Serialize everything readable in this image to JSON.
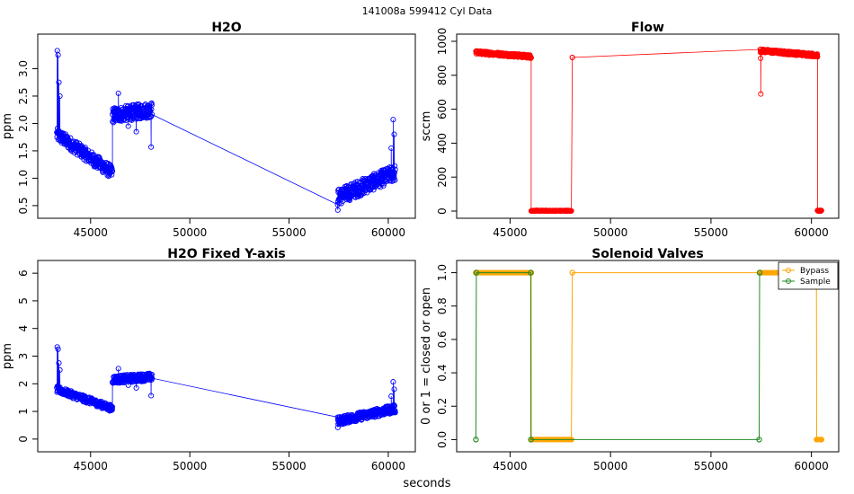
{
  "header": {
    "title": "141008a   599412   Cyl Data"
  },
  "shared_xlabel": "seconds",
  "chart_data": [
    {
      "id": "h2o",
      "type": "scatter",
      "title": "H2O",
      "xlabel": "",
      "ylabel": "ppm",
      "xlim": [
        42700,
        61000
      ],
      "ylim": [
        0.4,
        3.5
      ],
      "xticks": [
        45000,
        50000,
        55000,
        60000
      ],
      "yticks": [
        0.5,
        1.0,
        1.5,
        2.0,
        2.5,
        3.0
      ],
      "ytick_labels": [
        "0.5",
        "1.0",
        "1.5",
        "2.0",
        "2.5",
        "3.0"
      ],
      "color": "#0000ff",
      "connected": true,
      "segments": [
        {
          "x_start": 43300,
          "x_end": 46100,
          "y_start": 1.8,
          "y_end": 1.1,
          "spread": 0.12,
          "spikes": [
            [
              43320,
              3.33
            ],
            [
              43360,
              3.25
            ],
            [
              43400,
              2.75
            ],
            [
              43450,
              2.5
            ]
          ]
        },
        {
          "x_start": 46100,
          "x_end": 48100,
          "y_start": 2.15,
          "y_end": 2.25,
          "spread": 0.14,
          "spikes": [
            [
              46400,
              2.55
            ],
            [
              46900,
              1.95
            ],
            [
              47300,
              1.85
            ],
            [
              48050,
              1.57
            ]
          ]
        },
        {
          "x_start": 57450,
          "x_end": 60350,
          "y_start": 0.65,
          "y_end": 1.1,
          "spread": 0.15,
          "spikes": [
            [
              57460,
              0.42
            ],
            [
              60150,
              1.55
            ],
            [
              60250,
              2.07
            ],
            [
              60300,
              1.8
            ]
          ]
        }
      ]
    },
    {
      "id": "flow",
      "type": "scatter",
      "title": "Flow",
      "xlabel": "",
      "ylabel": "sccm",
      "xlim": [
        42700,
        61000
      ],
      "ylim": [
        0,
        1000
      ],
      "xticks": [
        45000,
        50000,
        55000,
        60000
      ],
      "yticks": [
        0,
        200,
        400,
        600,
        800,
        1000
      ],
      "ytick_labels": [
        "0",
        "200",
        "400",
        "600",
        "800",
        "1000"
      ],
      "color": "#ff0000",
      "connected": true,
      "segments": [
        {
          "x_start": 43300,
          "x_end": 46050,
          "y_start": 935,
          "y_end": 910,
          "spread": 10,
          "spikes": []
        },
        {
          "x_start": 46050,
          "x_end": 48050,
          "y_start": 2,
          "y_end": 2,
          "spread": 2,
          "spikes": []
        },
        {
          "x_start": 48100,
          "x_end": 48100,
          "y_start": 905,
          "y_end": 905,
          "spread": 0,
          "spikes": []
        },
        {
          "x_start": 57450,
          "x_end": 60300,
          "y_start": 945,
          "y_end": 918,
          "spread": 10,
          "spikes": [
            [
              57480,
              690
            ],
            [
              57470,
              900
            ]
          ]
        },
        {
          "x_start": 60300,
          "x_end": 60500,
          "y_start": 2,
          "y_end": 2,
          "spread": 2,
          "spikes": []
        }
      ]
    },
    {
      "id": "h2o-fixed",
      "type": "scatter",
      "title": "H2O Fixed Y-axis",
      "xlabel": "",
      "ylabel": "ppm",
      "xlim": [
        42700,
        61000
      ],
      "ylim": [
        -0.2,
        6.2
      ],
      "xticks": [
        45000,
        50000,
        55000,
        60000
      ],
      "yticks": [
        0,
        1,
        2,
        3,
        4,
        5,
        6
      ],
      "ytick_labels": [
        "0",
        "1",
        "2",
        "3",
        "4",
        "5",
        "6"
      ],
      "color": "#0000ff",
      "connected": true,
      "segments": [
        {
          "x_start": 43300,
          "x_end": 46100,
          "y_start": 1.8,
          "y_end": 1.1,
          "spread": 0.12,
          "spikes": [
            [
              43320,
              3.33
            ],
            [
              43360,
              3.25
            ],
            [
              43400,
              2.75
            ],
            [
              43450,
              2.5
            ]
          ]
        },
        {
          "x_start": 46100,
          "x_end": 48100,
          "y_start": 2.15,
          "y_end": 2.25,
          "spread": 0.14,
          "spikes": [
            [
              46400,
              2.55
            ],
            [
              46900,
              1.95
            ],
            [
              47300,
              1.85
            ],
            [
              48050,
              1.57
            ]
          ]
        },
        {
          "x_start": 57450,
          "x_end": 60350,
          "y_start": 0.65,
          "y_end": 1.1,
          "spread": 0.15,
          "spikes": [
            [
              57460,
              0.42
            ],
            [
              60150,
              1.55
            ],
            [
              60250,
              2.07
            ],
            [
              60300,
              1.8
            ]
          ]
        }
      ]
    },
    {
      "id": "valves",
      "type": "line",
      "title": "Solenoid Valves",
      "xlabel": "",
      "ylabel": "0 or 1 = closed or open",
      "xlim": [
        42700,
        61000
      ],
      "ylim": [
        -0.03,
        1.03
      ],
      "xticks": [
        45000,
        50000,
        55000,
        60000
      ],
      "yticks": [
        0.0,
        0.2,
        0.4,
        0.6,
        0.8,
        1.0
      ],
      "ytick_labels": [
        "0.0",
        "0.2",
        "0.4",
        "0.6",
        "0.8",
        "1.0"
      ],
      "legend": "top-right",
      "series": [
        {
          "name": "Bypass",
          "color": "#ffa500",
          "points": [
            [
              43300,
              1
            ],
            [
              46050,
              1
            ],
            [
              46060,
              0
            ],
            [
              48050,
              0
            ],
            [
              48100,
              1
            ],
            [
              57450,
              1
            ],
            [
              57460,
              1
            ],
            [
              60250,
              1
            ],
            [
              60260,
              0
            ],
            [
              60500,
              0
            ]
          ],
          "dense_ranges": [
            [
              43300,
              46050,
              1
            ],
            [
              46060,
              48050,
              0
            ],
            [
              57460,
              60250,
              1
            ],
            [
              60260,
              60500,
              0
            ]
          ]
        },
        {
          "name": "Sample",
          "color": "#228b22",
          "points": [
            [
              43300,
              0
            ],
            [
              43320,
              1
            ],
            [
              46030,
              1
            ],
            [
              46040,
              0
            ],
            [
              57400,
              0
            ],
            [
              57420,
              1
            ]
          ],
          "dense_ranges": []
        }
      ]
    }
  ]
}
